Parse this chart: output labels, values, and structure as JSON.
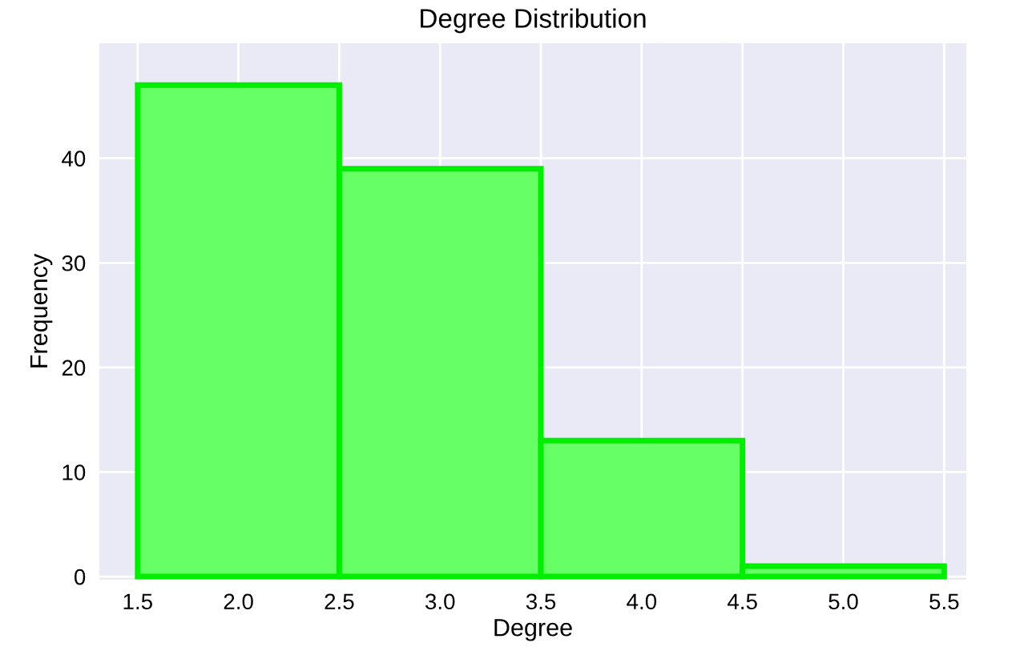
{
  "chart_data": {
    "type": "histogram",
    "title": "Degree Distribution",
    "xlabel": "Degree",
    "ylabel": "Frequency",
    "bins": [
      1.5,
      2.5,
      3.5,
      4.5,
      5.5
    ],
    "values": [
      47,
      39,
      13,
      1
    ],
    "color": "#66ff66",
    "xlim": [
      1.31,
      5.61
    ],
    "ylim": [
      -0.3,
      51
    ],
    "xticks": [
      {
        "value": 1.5,
        "label": "1.5"
      },
      {
        "value": 2,
        "label": "2.0"
      },
      {
        "value": 2.5,
        "label": "2.5"
      },
      {
        "value": 3,
        "label": "3.0"
      },
      {
        "value": 3.5,
        "label": "3.5"
      },
      {
        "value": 4,
        "label": "4.0"
      },
      {
        "value": 4.5,
        "label": "4.5"
      },
      {
        "value": 5,
        "label": "5.0"
      },
      {
        "value": 5.5,
        "label": "5.5"
      }
    ],
    "yticks": [
      0,
      10,
      20,
      30,
      40
    ],
    "grid": true
  }
}
